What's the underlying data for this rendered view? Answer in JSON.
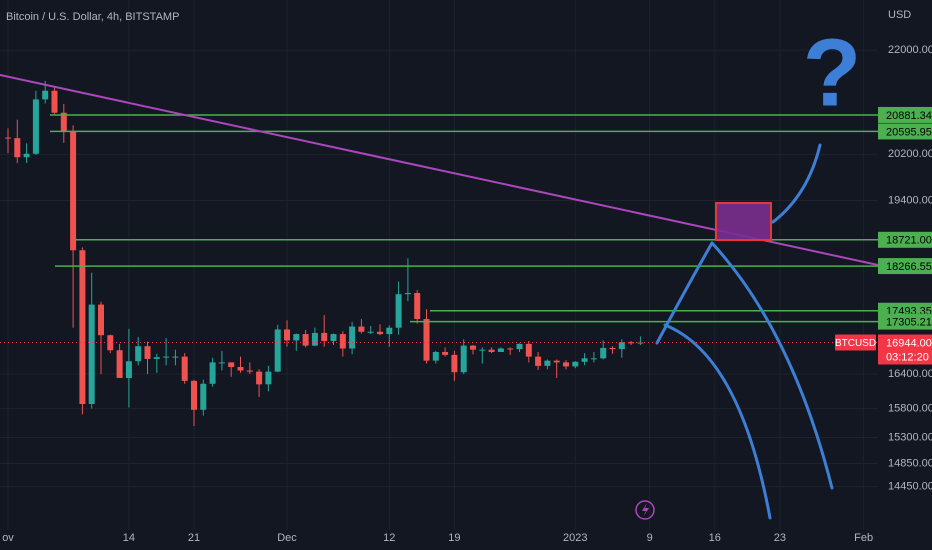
{
  "chart_data": {
    "type": "candlestick",
    "title": "Bitcoin / U.S. Dollar, 4h, BITSTAMP",
    "currency": "USD",
    "log": false,
    "grid": true,
    "up_color": "#26a69a",
    "down_color": "#ef5350",
    "ylim": [
      13700,
      22870
    ],
    "yticks": [
      {
        "value": 22000,
        "label": "22000.00"
      },
      {
        "value": 20200,
        "label": "20200.00"
      },
      {
        "value": 19400,
        "label": "19400.00"
      },
      {
        "value": 16400,
        "label": "16400.00"
      },
      {
        "value": 15800,
        "label": "15800.00"
      },
      {
        "value": 15300,
        "label": "15300.00"
      },
      {
        "value": 14850,
        "label": "14850.00"
      },
      {
        "value": 14450,
        "label": "14450.00"
      }
    ],
    "categories": [
      "ov",
      null,
      null,
      null,
      null,
      null,
      null,
      null,
      null,
      null,
      null,
      null,
      null,
      "14",
      null,
      null,
      null,
      null,
      null,
      null,
      "21",
      null,
      null,
      null,
      null,
      null,
      null,
      null,
      null,
      null,
      "Dec",
      null,
      null,
      null,
      null,
      null,
      null,
      null,
      null,
      null,
      null,
      "12",
      null,
      null,
      null,
      null,
      null,
      null,
      "19",
      null,
      null,
      null,
      null,
      null,
      null,
      null,
      null,
      null,
      null,
      null,
      null,
      "2023",
      null,
      null,
      null,
      null,
      null,
      null,
      null,
      "9",
      null,
      null,
      null,
      null,
      null,
      null,
      "16",
      null,
      null,
      null,
      null,
      null,
      null,
      "23",
      null,
      null,
      null,
      null,
      null,
      null,
      null,
      null,
      "Feb"
    ],
    "ohlc": [
      [
        20490,
        20650,
        20220,
        20480
      ],
      [
        20480,
        20800,
        20050,
        20150
      ],
      [
        20150,
        20390,
        20050,
        20210
      ],
      [
        20210,
        21300,
        20190,
        21150
      ],
      [
        21150,
        21470,
        21080,
        21300
      ],
      [
        21300,
        21360,
        20900,
        20920
      ],
      [
        20920,
        21070,
        20400,
        20600
      ],
      [
        20600,
        20700,
        17200,
        18540
      ],
      [
        18540,
        18590,
        15700,
        15880
      ],
      [
        15880,
        18150,
        15800,
        17600
      ],
      [
        17600,
        17650,
        16400,
        17070
      ],
      [
        17070,
        17080,
        16760,
        16810
      ],
      [
        16810,
        16920,
        16330,
        16330
      ],
      [
        16330,
        17180,
        15820,
        16620
      ],
      [
        16620,
        17040,
        16550,
        16880
      ],
      [
        16880,
        16960,
        16400,
        16660
      ],
      [
        16660,
        16750,
        16420,
        16690
      ],
      [
        16690,
        17020,
        16550,
        16700
      ],
      [
        16700,
        16820,
        16550,
        16700
      ],
      [
        16700,
        16760,
        16230,
        16280
      ],
      [
        16280,
        16300,
        15500,
        15780
      ],
      [
        15780,
        16300,
        15680,
        16230
      ],
      [
        16230,
        16680,
        16180,
        16600
      ],
      [
        16600,
        16800,
        16460,
        16600
      ],
      [
        16600,
        16600,
        16350,
        16520
      ],
      [
        16520,
        16700,
        16420,
        16460
      ],
      [
        16460,
        16600,
        16400,
        16440
      ],
      [
        16440,
        16480,
        16000,
        16220
      ],
      [
        16220,
        16540,
        16100,
        16440
      ],
      [
        16440,
        17250,
        16430,
        17170
      ],
      [
        17170,
        17330,
        16870,
        16980
      ],
      [
        16980,
        17100,
        16800,
        17090
      ],
      [
        17090,
        17160,
        16860,
        16890
      ],
      [
        16890,
        17200,
        16880,
        17110
      ],
      [
        17110,
        17420,
        16870,
        16970
      ],
      [
        16970,
        17100,
        16900,
        17090
      ],
      [
        17090,
        17140,
        16700,
        16840
      ],
      [
        16840,
        17300,
        16740,
        17220
      ],
      [
        17220,
        17350,
        17100,
        17130
      ],
      [
        17130,
        17230,
        17090,
        17130
      ],
      [
        17130,
        17260,
        17070,
        17090
      ],
      [
        17090,
        17240,
        16870,
        17200
      ],
      [
        17200,
        18000,
        17080,
        17780
      ],
      [
        17780,
        18400,
        17660,
        17800
      ],
      [
        17800,
        17850,
        17270,
        17350
      ],
      [
        17350,
        17520,
        16580,
        16630
      ],
      [
        16630,
        16800,
        16580,
        16780
      ],
      [
        16780,
        16860,
        16700,
        16730
      ],
      [
        16730,
        16800,
        16280,
        16430
      ],
      [
        16430,
        17000,
        16400,
        16890
      ],
      [
        16890,
        16900,
        16740,
        16820
      ],
      [
        16820,
        16860,
        16580,
        16820
      ],
      [
        16820,
        16860,
        16760,
        16780
      ],
      [
        16780,
        16860,
        16780,
        16840
      ],
      [
        16840,
        16860,
        16730,
        16830
      ],
      [
        16830,
        16930,
        16780,
        16920
      ],
      [
        16920,
        16970,
        16600,
        16700
      ],
      [
        16700,
        16780,
        16470,
        16540
      ],
      [
        16540,
        16650,
        16480,
        16630
      ],
      [
        16630,
        16650,
        16330,
        16600
      ],
      [
        16600,
        16640,
        16480,
        16530
      ],
      [
        16530,
        16620,
        16500,
        16610
      ],
      [
        16610,
        16760,
        16550,
        16670
      ],
      [
        16670,
        16780,
        16600,
        16670
      ],
      [
        16670,
        16980,
        16650,
        16850
      ],
      [
        16850,
        16880,
        16750,
        16830
      ],
      [
        16830,
        17000,
        16680,
        16950
      ],
      [
        16950,
        16970,
        16900,
        16930
      ],
      [
        16930,
        17050,
        16900,
        16944
      ],
      null,
      null,
      null,
      null,
      null,
      null,
      null,
      null,
      null,
      null,
      null,
      null,
      null,
      null,
      null,
      null,
      null,
      null,
      null,
      null,
      null,
      null,
      null,
      null
    ],
    "level_color": "#4caf50",
    "levels": [
      {
        "value": 20881.34,
        "label": "20881.34"
      },
      {
        "value": 20595.95,
        "label": "20595.95"
      },
      {
        "value": 18721,
        "label": "18721.00"
      },
      {
        "value": 18266.55,
        "label": "18266.55"
      },
      {
        "value": 17493.35,
        "label": "17493.35"
      },
      {
        "value": 17305.21,
        "label": "17305.21"
      }
    ],
    "last_price": {
      "name": "BTCUSD",
      "value": 16944,
      "label": "16944.00",
      "countdown": "03:12:20",
      "color": "#f23645"
    }
  }
}
